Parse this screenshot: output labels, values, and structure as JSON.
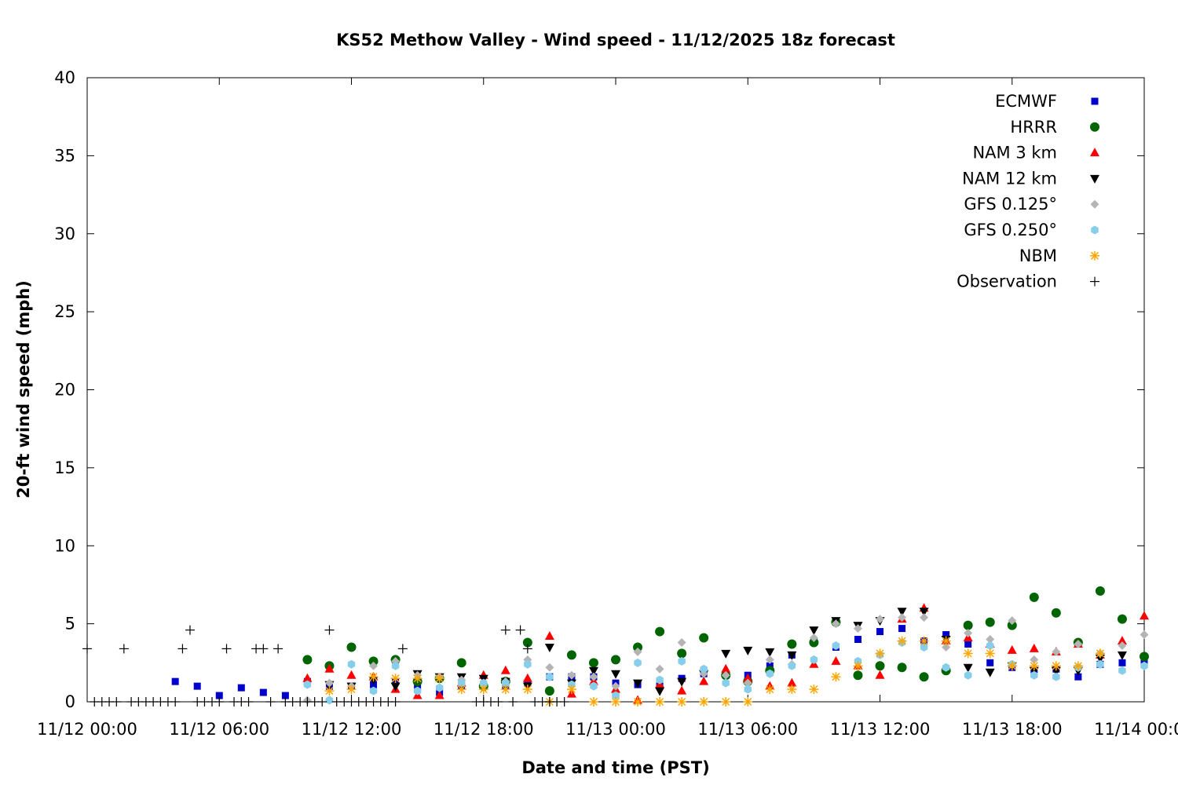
{
  "chart_data": {
    "type": "scatter",
    "title": "KS52 Methow Valley - Wind speed - 11/12/2025 18z forecast",
    "xlabel": "Date and time (PST)",
    "ylabel": "20-ft wind speed (mph)",
    "x_unit": "hours after 11/12 00:00 PST",
    "xlim": [
      0,
      48
    ],
    "ylim": [
      0,
      40
    ],
    "x_ticks": [
      {
        "x": 0,
        "label": "11/12 00:00"
      },
      {
        "x": 6,
        "label": "11/12 06:00"
      },
      {
        "x": 12,
        "label": "11/12 12:00"
      },
      {
        "x": 18,
        "label": "11/12 18:00"
      },
      {
        "x": 24,
        "label": "11/13 00:00"
      },
      {
        "x": 30,
        "label": "11/13 06:00"
      },
      {
        "x": 36,
        "label": "11/13 12:00"
      },
      {
        "x": 42,
        "label": "11/13 18:00"
      },
      {
        "x": 48,
        "label": "11/14 00:00"
      }
    ],
    "y_ticks": [
      0,
      5,
      10,
      15,
      20,
      25,
      30,
      35,
      40
    ],
    "legend_position": "top-right",
    "grid": false,
    "series": [
      {
        "name": "ECMWF",
        "marker": "square",
        "color": "#0000cc",
        "x": [
          4,
          5,
          6,
          7,
          8,
          9,
          10,
          11,
          12,
          13,
          14,
          15,
          16,
          17,
          18,
          19,
          20,
          21,
          22,
          23,
          24,
          25,
          26,
          27,
          28,
          29,
          30,
          31,
          32,
          33,
          34,
          35,
          36,
          37,
          38,
          39,
          40,
          41,
          42,
          43,
          44,
          45,
          46,
          47,
          48
        ],
        "y": [
          1.3,
          1.0,
          0.4,
          0.9,
          0.6,
          0.4,
          1.3,
          1.0,
          1.0,
          1.1,
          1.3,
          1.0,
          0.6,
          1.0,
          1.1,
          1.0,
          1.2,
          1.6,
          1.6,
          1.6,
          1.2,
          1.1,
          1.0,
          1.5,
          1.8,
          1.7,
          1.7,
          2.3,
          3.0,
          3.9,
          3.5,
          4.0,
          4.5,
          4.7,
          3.9,
          4.3,
          3.7,
          2.5,
          2.2,
          2.0,
          2.1,
          1.6,
          2.4,
          2.5,
          2.5
        ]
      },
      {
        "name": "HRRR",
        "marker": "circle",
        "color": "#006400",
        "x": [
          10,
          11,
          12,
          13,
          14,
          15,
          16,
          17,
          18,
          19,
          20,
          21,
          22,
          23,
          24,
          25,
          26,
          27,
          28,
          29,
          30,
          31,
          32,
          33,
          34,
          35,
          36,
          37,
          38,
          39,
          40,
          41,
          42,
          43,
          44,
          45,
          46,
          47,
          48
        ],
        "y": [
          2.7,
          2.3,
          3.5,
          2.6,
          2.7,
          1.3,
          1.5,
          2.5,
          1.0,
          1.3,
          3.8,
          0.7,
          3.0,
          2.5,
          2.7,
          3.5,
          4.5,
          3.1,
          4.1,
          1.7,
          1.3,
          2.0,
          3.7,
          3.8,
          5.1,
          1.7,
          2.3,
          2.2,
          1.6,
          2.0,
          4.9,
          5.1,
          4.9,
          6.7,
          5.7,
          3.8,
          7.1,
          5.3,
          2.9
        ]
      },
      {
        "name": "NAM 3 km",
        "marker": "triangle-up",
        "color": "#ff0000",
        "x": [
          10,
          11,
          12,
          13,
          14,
          15,
          16,
          17,
          18,
          19,
          20,
          21,
          22,
          23,
          24,
          25,
          26,
          27,
          28,
          29,
          30,
          31,
          32,
          33,
          34,
          35,
          36,
          37,
          38,
          39,
          40,
          41,
          42,
          43,
          44,
          45,
          46,
          47,
          48
        ],
        "y": [
          1.5,
          2.1,
          1.7,
          1.6,
          0.8,
          0.4,
          0.4,
          1.2,
          1.7,
          2.0,
          1.5,
          4.2,
          0.5,
          1.3,
          0.8,
          0.1,
          1.1,
          0.7,
          1.3,
          2.1,
          1.5,
          1.0,
          1.2,
          2.4,
          2.6,
          2.3,
          1.7,
          5.3,
          6.0,
          3.9,
          4.1,
          3.7,
          3.3,
          3.4,
          3.2,
          3.7,
          3.0,
          3.9,
          5.5
        ]
      },
      {
        "name": "NAM 12 km",
        "marker": "triangle-down",
        "color": "#000000",
        "x": [
          11,
          12,
          13,
          14,
          15,
          16,
          17,
          18,
          19,
          20,
          21,
          22,
          23,
          24,
          25,
          26,
          27,
          28,
          29,
          30,
          31,
          32,
          33,
          34,
          35,
          36,
          37,
          38,
          39,
          40,
          41,
          42,
          43,
          44,
          45,
          46,
          47
        ],
        "y": [
          1.1,
          1.0,
          1.4,
          1.0,
          1.8,
          1.6,
          1.6,
          1.5,
          1.3,
          1.0,
          3.5,
          1.2,
          2.0,
          1.8,
          1.2,
          0.7,
          1.3,
          1.8,
          3.1,
          3.3,
          3.2,
          3.0,
          4.6,
          5.2,
          4.9,
          5.2,
          5.8,
          5.8,
          4.0,
          2.2,
          1.9,
          2.3,
          2.0,
          2.0,
          2.0,
          2.8,
          3.0
        ]
      },
      {
        "name": "GFS 0.125°",
        "marker": "diamond",
        "color": "#b4b4b4",
        "x": [
          10,
          11,
          12,
          13,
          14,
          15,
          16,
          17,
          18,
          19,
          20,
          21,
          22,
          23,
          24,
          25,
          26,
          27,
          28,
          29,
          30,
          31,
          32,
          33,
          34,
          35,
          36,
          37,
          38,
          39,
          40,
          41,
          42,
          43,
          44,
          45,
          46,
          47,
          48
        ],
        "y": [
          0.1,
          1.2,
          1.0,
          2.3,
          2.6,
          1.7,
          1.6,
          1.4,
          1.1,
          1.3,
          2.7,
          2.2,
          1.7,
          1.6,
          1.0,
          3.2,
          2.1,
          3.8,
          1.8,
          1.7,
          1.2,
          2.7,
          2.4,
          4.1,
          5.0,
          4.7,
          5.3,
          5.4,
          5.4,
          3.5,
          4.4,
          4.0,
          5.2,
          2.7,
          3.2,
          3.7,
          3.1,
          3.6,
          4.3
        ]
      },
      {
        "name": "GFS 0.250°",
        "marker": "hexagon",
        "color": "#87ceeb",
        "x": [
          10,
          11,
          12,
          13,
          14,
          15,
          16,
          17,
          18,
          19,
          20,
          21,
          22,
          23,
          24,
          25,
          26,
          27,
          28,
          29,
          30,
          31,
          32,
          33,
          34,
          35,
          36,
          37,
          38,
          39,
          40,
          41,
          42,
          43,
          44,
          45,
          46,
          47,
          48
        ],
        "y": [
          1.1,
          0.1,
          2.4,
          0.7,
          2.3,
          0.7,
          0.9,
          1.2,
          1.2,
          1.2,
          2.4,
          1.6,
          1.1,
          1.0,
          0.4,
          2.5,
          1.4,
          2.6,
          2.1,
          1.2,
          0.8,
          1.8,
          2.3,
          2.7,
          3.6,
          2.6,
          3.0,
          3.8,
          3.5,
          2.2,
          1.7,
          3.6,
          2.4,
          1.7,
          1.6,
          2.2,
          2.4,
          2.0,
          2.3
        ]
      },
      {
        "name": "NBM",
        "marker": "star",
        "color": "#ffa500",
        "x": [
          11,
          12,
          13,
          14,
          15,
          16,
          17,
          18,
          19,
          20,
          21,
          22,
          23,
          24,
          25,
          26,
          27,
          28,
          29,
          30,
          31,
          32,
          33,
          34,
          35,
          36,
          37,
          38,
          39,
          40,
          41,
          42,
          43,
          44,
          45,
          46
        ],
        "y": [
          0.7,
          0.8,
          1.6,
          1.5,
          1.5,
          1.5,
          0.8,
          0.8,
          0.8,
          0.8,
          0.0,
          0.8,
          0.0,
          0.0,
          0.0,
          0.0,
          0.0,
          0.0,
          0.0,
          0.0,
          0.8,
          0.8,
          0.8,
          1.6,
          2.3,
          3.1,
          3.9,
          3.9,
          3.9,
          3.1,
          3.1,
          2.3,
          2.3,
          2.3,
          2.3,
          3.1
        ]
      },
      {
        "name": "Observation",
        "marker": "plus",
        "color": "#000000",
        "x": [
          0,
          0.33,
          0.67,
          1,
          1.33,
          1.67,
          2,
          2.33,
          2.67,
          3,
          3.33,
          3.67,
          4,
          4.33,
          4.67,
          5,
          5.33,
          5.67,
          6,
          6.33,
          6.67,
          7,
          7.33,
          7.67,
          8,
          8.33,
          8.67,
          9,
          9.33,
          9.67,
          10,
          10.33,
          10.67,
          11,
          11.33,
          11.67,
          12,
          12.33,
          12.67,
          13,
          13.33,
          13.67,
          14,
          14.33,
          17.67,
          18,
          18.33,
          18.67,
          19,
          19.33,
          19.67,
          20,
          20.33,
          20.67,
          21,
          21.33,
          21.67
        ],
        "y": [
          3.4,
          0,
          0,
          0,
          0,
          3.4,
          0,
          0,
          0,
          0,
          0,
          0,
          0,
          3.4,
          4.6,
          0,
          0,
          0,
          0,
          3.4,
          0,
          0,
          0,
          3.4,
          3.4,
          0,
          3.4,
          0,
          0,
          0,
          0,
          0,
          0,
          4.6,
          0,
          0,
          0,
          0,
          0,
          0,
          0,
          0,
          0,
          3.4,
          0,
          0,
          0,
          0,
          4.6,
          0,
          4.6,
          3.4,
          0,
          0,
          0,
          0,
          0
        ]
      }
    ]
  }
}
